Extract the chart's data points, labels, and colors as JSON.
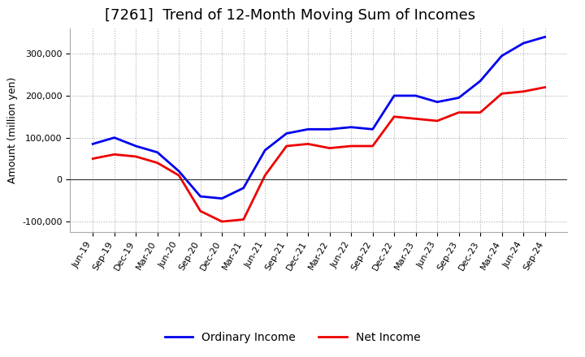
{
  "title": "[7261]  Trend of 12-Month Moving Sum of Incomes",
  "ylabel": "Amount (million yen)",
  "ylim": [
    -125000,
    360000
  ],
  "yticks": [
    -100000,
    0,
    100000,
    200000,
    300000
  ],
  "background_color": "#ffffff",
  "grid_color": "#999999",
  "x_labels": [
    "Jun-19",
    "Sep-19",
    "Dec-19",
    "Mar-20",
    "Jun-20",
    "Sep-20",
    "Dec-20",
    "Mar-21",
    "Jun-21",
    "Sep-21",
    "Dec-21",
    "Mar-22",
    "Jun-22",
    "Sep-22",
    "Dec-22",
    "Mar-23",
    "Jun-23",
    "Sep-23",
    "Dec-23",
    "Mar-24",
    "Jun-24",
    "Sep-24"
  ],
  "ordinary_income": [
    85000,
    100000,
    80000,
    65000,
    20000,
    -40000,
    -45000,
    -20000,
    70000,
    110000,
    120000,
    120000,
    125000,
    120000,
    200000,
    200000,
    185000,
    195000,
    235000,
    295000,
    325000,
    340000
  ],
  "net_income": [
    50000,
    60000,
    55000,
    40000,
    10000,
    -75000,
    -100000,
    -95000,
    10000,
    80000,
    85000,
    75000,
    80000,
    80000,
    150000,
    145000,
    140000,
    160000,
    160000,
    205000,
    210000,
    220000
  ],
  "ordinary_color": "#0000ee",
  "net_color": "#ee0000",
  "line_width": 2.0,
  "title_fontsize": 13,
  "tick_fontsize": 8,
  "ylabel_fontsize": 9,
  "legend_labels": [
    "Ordinary Income",
    "Net Income"
  ],
  "legend_fontsize": 10
}
